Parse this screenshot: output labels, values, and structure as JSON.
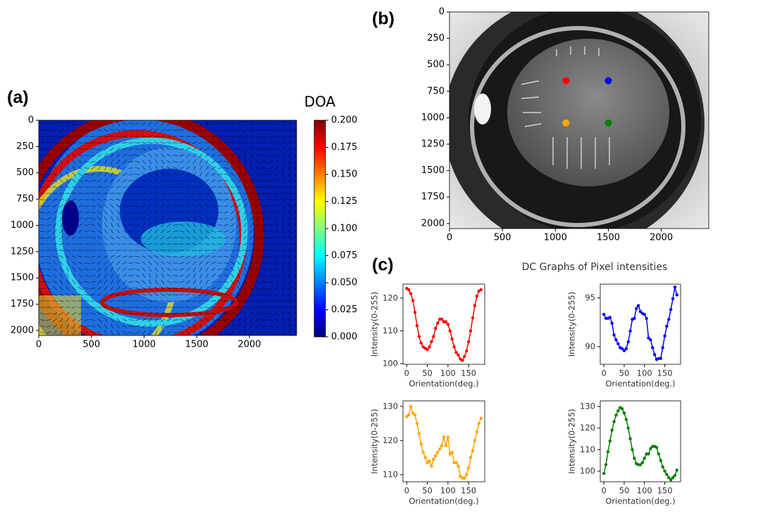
{
  "panel_labels": [
    "(a)",
    "(b)",
    "(c)"
  ],
  "group_title": "DC Graphs of Pixel intensities",
  "chart_data": [
    {
      "type": "heatmap",
      "colorbar_label": "DOA",
      "clim": [
        0,
        0.2
      ],
      "cticks": [
        {
          "value": 0,
          "label": "0.000"
        },
        0.025,
        {
          "value": 0.05,
          "label": "0.050"
        },
        0.075,
        {
          "value": 0.1,
          "label": "0.100"
        },
        0.125,
        {
          "value": 0.15,
          "label": "0.150"
        },
        0.175,
        {
          "value": 0.2,
          "label": "0.200"
        }
      ],
      "colormap": [
        "#00007f",
        "#0000ff",
        "#007fff",
        "#00ffff",
        "#7fff7f",
        "#ffff00",
        "#ff7f00",
        "#ff0000",
        "#7f0000"
      ],
      "xlim": [
        0,
        2448
      ],
      "ylim": [
        2048,
        0
      ],
      "xticks": [
        0,
        500,
        1000,
        1500,
        2000
      ],
      "yticks": [
        0,
        250,
        500,
        750,
        1000,
        1250,
        1500,
        1750,
        2000
      ]
    },
    {
      "type": "scatter",
      "xlim": [
        0,
        2448
      ],
      "ylim": [
        2048,
        0
      ],
      "xticks": [
        0,
        500,
        1000,
        1500,
        2000
      ],
      "yticks": [
        0,
        250,
        500,
        750,
        1000,
        1250,
        1500,
        1750,
        2000
      ],
      "x": [
        1100,
        1500,
        1100,
        1500
      ],
      "y": [
        650,
        650,
        1050,
        1050
      ],
      "colors": [
        "#ff0000",
        "#0000ff",
        "#ffa500",
        "#008000"
      ]
    },
    {
      "type": "line",
      "xlabel": "Orientation(deg.)",
      "ylabel": "Intensity(0-255)",
      "xlim": [
        -9,
        189
      ],
      "ylim": [
        99.8,
        124.3
      ],
      "xticks": [
        0,
        50,
        100,
        150
      ],
      "yticks": [
        100,
        110,
        120
      ],
      "x": [
        0,
        5,
        10,
        15,
        20,
        25,
        30,
        35,
        40,
        45,
        50,
        55,
        60,
        65,
        70,
        75,
        80,
        85,
        90,
        95,
        100,
        105,
        110,
        115,
        120,
        125,
        130,
        135,
        140,
        145,
        150,
        155,
        160,
        165,
        170,
        175,
        180
      ],
      "series": [
        {
          "color": "#ff0000",
          "values": [
            123,
            122.6,
            121.4,
            119.3,
            115.7,
            111.6,
            108.3,
            106.3,
            105.1,
            104.7,
            104.3,
            105.1,
            106.7,
            108.3,
            110.8,
            112.4,
            113.6,
            113.6,
            112.8,
            112.8,
            112,
            110,
            107.5,
            105.1,
            103.4,
            102.6,
            101.4,
            101,
            102.2,
            103.9,
            106.7,
            110,
            114,
            117.7,
            120.6,
            122.2,
            122.6
          ]
        }
      ]
    },
    {
      "type": "line",
      "xlabel": "Orientation(deg.)",
      "ylabel": "Intensity(0-255)",
      "xlim": [
        -9,
        189
      ],
      "ylim": [
        88.2,
        96.4
      ],
      "xticks": [
        0,
        50,
        100,
        150
      ],
      "yticks": [
        90,
        95
      ],
      "x": [
        0,
        5,
        10,
        15,
        20,
        25,
        30,
        35,
        40,
        45,
        50,
        55,
        60,
        65,
        70,
        75,
        80,
        85,
        90,
        95,
        100,
        105,
        110,
        115,
        120,
        125,
        130,
        135,
        140,
        145,
        150,
        155,
        160,
        165,
        170,
        175,
        180
      ],
      "series": [
        {
          "color": "#0000ff",
          "values": [
            93.3,
            92.9,
            92.9,
            93.0,
            92.4,
            91.2,
            90.7,
            90.3,
            89.9,
            89.8,
            89.6,
            89.8,
            90.5,
            91.6,
            92.8,
            92.9,
            93.9,
            94.2,
            93.6,
            93.4,
            93.3,
            92.9,
            90.9,
            90.7,
            89.9,
            89.2,
            88.7,
            88.8,
            88.8,
            89.9,
            91.1,
            92.1,
            92.8,
            93.8,
            94.9,
            96.1,
            95.3
          ]
        }
      ]
    },
    {
      "type": "line",
      "xlabel": "Orientation(deg.)",
      "ylabel": "Intensity(0-255)",
      "xlim": [
        -9,
        189
      ],
      "ylim": [
        107.9,
        131.6
      ],
      "xticks": [
        0,
        50,
        100,
        150
      ],
      "yticks": [
        110,
        120,
        130
      ],
      "x": [
        0,
        5,
        10,
        15,
        20,
        25,
        30,
        35,
        40,
        45,
        50,
        55,
        60,
        65,
        70,
        75,
        80,
        85,
        90,
        95,
        100,
        105,
        110,
        115,
        120,
        125,
        130,
        135,
        140,
        145,
        150,
        155,
        160,
        165,
        170,
        175,
        180
      ],
      "series": [
        {
          "color": "#ffa500",
          "values": [
            127,
            127.5,
            130,
            128,
            127.5,
            125,
            122,
            119,
            116.5,
            115,
            113.5,
            114,
            112.5,
            114.5,
            115.5,
            116.5,
            117.5,
            118.5,
            121,
            118.5,
            121,
            116,
            116.5,
            113.5,
            113.5,
            112.5,
            109.5,
            109,
            109,
            110,
            112,
            115,
            117,
            120,
            122.5,
            125,
            126.5
          ]
        }
      ]
    },
    {
      "type": "line",
      "xlabel": "Orientation(deg.)",
      "ylabel": "Intensity(0-255)",
      "xlim": [
        -9,
        189
      ],
      "ylim": [
        95.1,
        132.6
      ],
      "xticks": [
        0,
        50,
        100,
        150
      ],
      "yticks": [
        100,
        110,
        120,
        130
      ],
      "x": [
        0,
        5,
        10,
        15,
        20,
        25,
        30,
        35,
        40,
        45,
        50,
        55,
        60,
        65,
        70,
        75,
        80,
        85,
        90,
        95,
        100,
        105,
        110,
        115,
        120,
        125,
        130,
        135,
        140,
        145,
        150,
        155,
        160,
        165,
        170,
        175,
        180
      ],
      "series": [
        {
          "color": "#008000",
          "values": [
            99,
            103,
            109,
            114,
            119,
            123,
            126,
            128,
            129.5,
            129,
            127,
            124,
            120,
            115,
            110,
            106,
            103.5,
            103,
            103,
            104,
            106,
            108,
            108,
            110.5,
            111.5,
            111.5,
            111,
            108,
            105,
            102,
            100,
            98.5,
            97,
            96,
            97,
            98,
            100.5
          ]
        }
      ]
    }
  ]
}
